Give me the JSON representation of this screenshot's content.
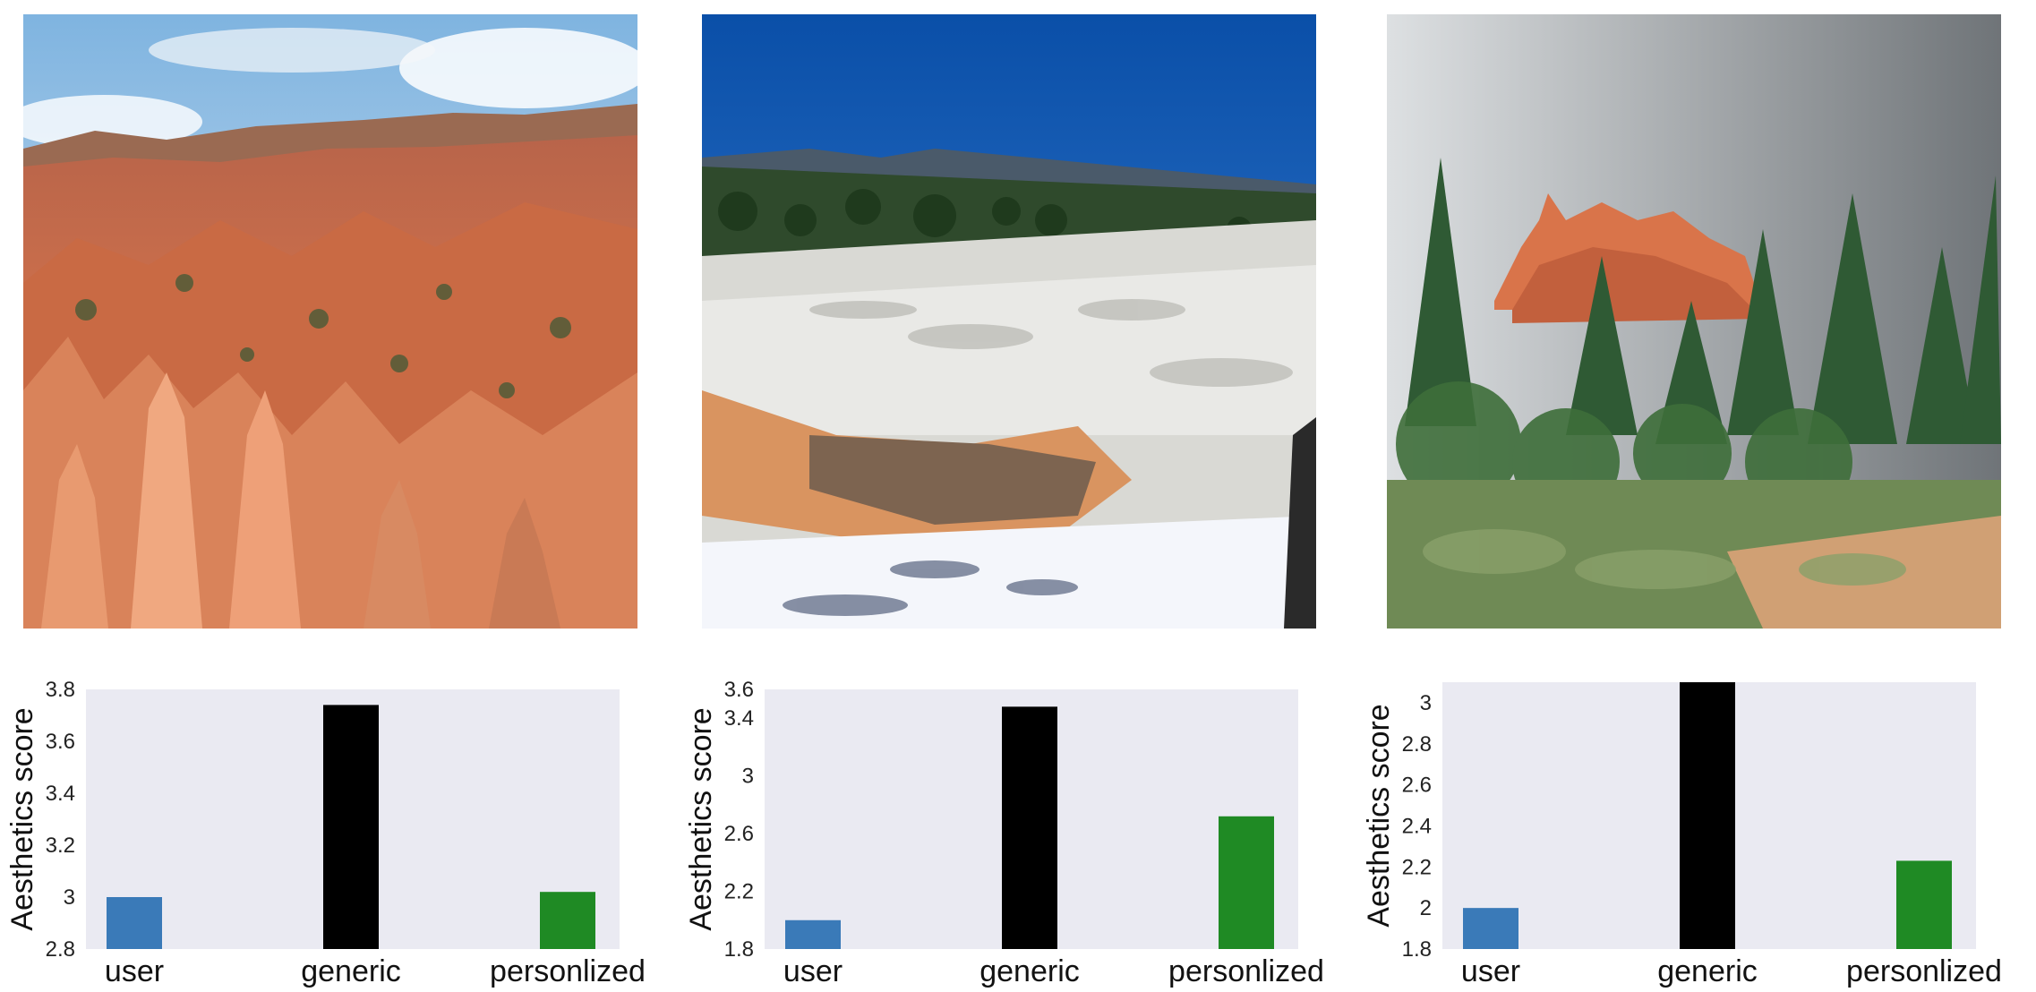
{
  "photos": [
    {
      "subject": "red rock hoodoo canyon"
    },
    {
      "subject": "white travertine terraces under blue sky"
    },
    {
      "subject": "red rock formation behind pine trees under overcast sky"
    }
  ],
  "colors": {
    "user": "#3a7ab8",
    "generic": "#000000",
    "personlized": "#1f8a24",
    "plot_bg": "#eaeaf2"
  },
  "chart_data": [
    {
      "type": "bar",
      "categories": [
        "user",
        "generic",
        "personlized"
      ],
      "values": [
        3.0,
        3.74,
        3.02
      ],
      "ylabel": "Aesthetics score",
      "ylim": [
        2.8,
        3.8
      ],
      "yticks": [
        2.8,
        3,
        3.2,
        3.4,
        3.6,
        3.8
      ],
      "ytick_labels": [
        "2.8",
        "3",
        "3.2",
        "3.4",
        "3.6",
        "3.8"
      ],
      "grid": false
    },
    {
      "type": "bar",
      "categories": [
        "user",
        "generic",
        "personlized"
      ],
      "values": [
        2.0,
        3.48,
        2.72
      ],
      "ylabel": "Aesthetics score",
      "ylim": [
        1.8,
        3.6
      ],
      "yticks": [
        1.8,
        2.2,
        2.6,
        3,
        3.4,
        3.6
      ],
      "ytick_labels": [
        "1.8",
        "2.2",
        "2.6",
        "3",
        "3.4",
        "3.6"
      ],
      "grid": false
    },
    {
      "type": "bar",
      "categories": [
        "user",
        "generic",
        "personlized"
      ],
      "values": [
        2.0,
        3.1,
        2.23
      ],
      "ylabel": "Aesthetics score",
      "ylim": [
        1.8,
        3.1
      ],
      "yticks": [
        1.8,
        2,
        2.2,
        2.4,
        2.6,
        2.8,
        3
      ],
      "ytick_labels": [
        "1.8",
        "2",
        "2.2",
        "2.4",
        "2.6",
        "2.8",
        "3"
      ],
      "grid": false
    }
  ]
}
